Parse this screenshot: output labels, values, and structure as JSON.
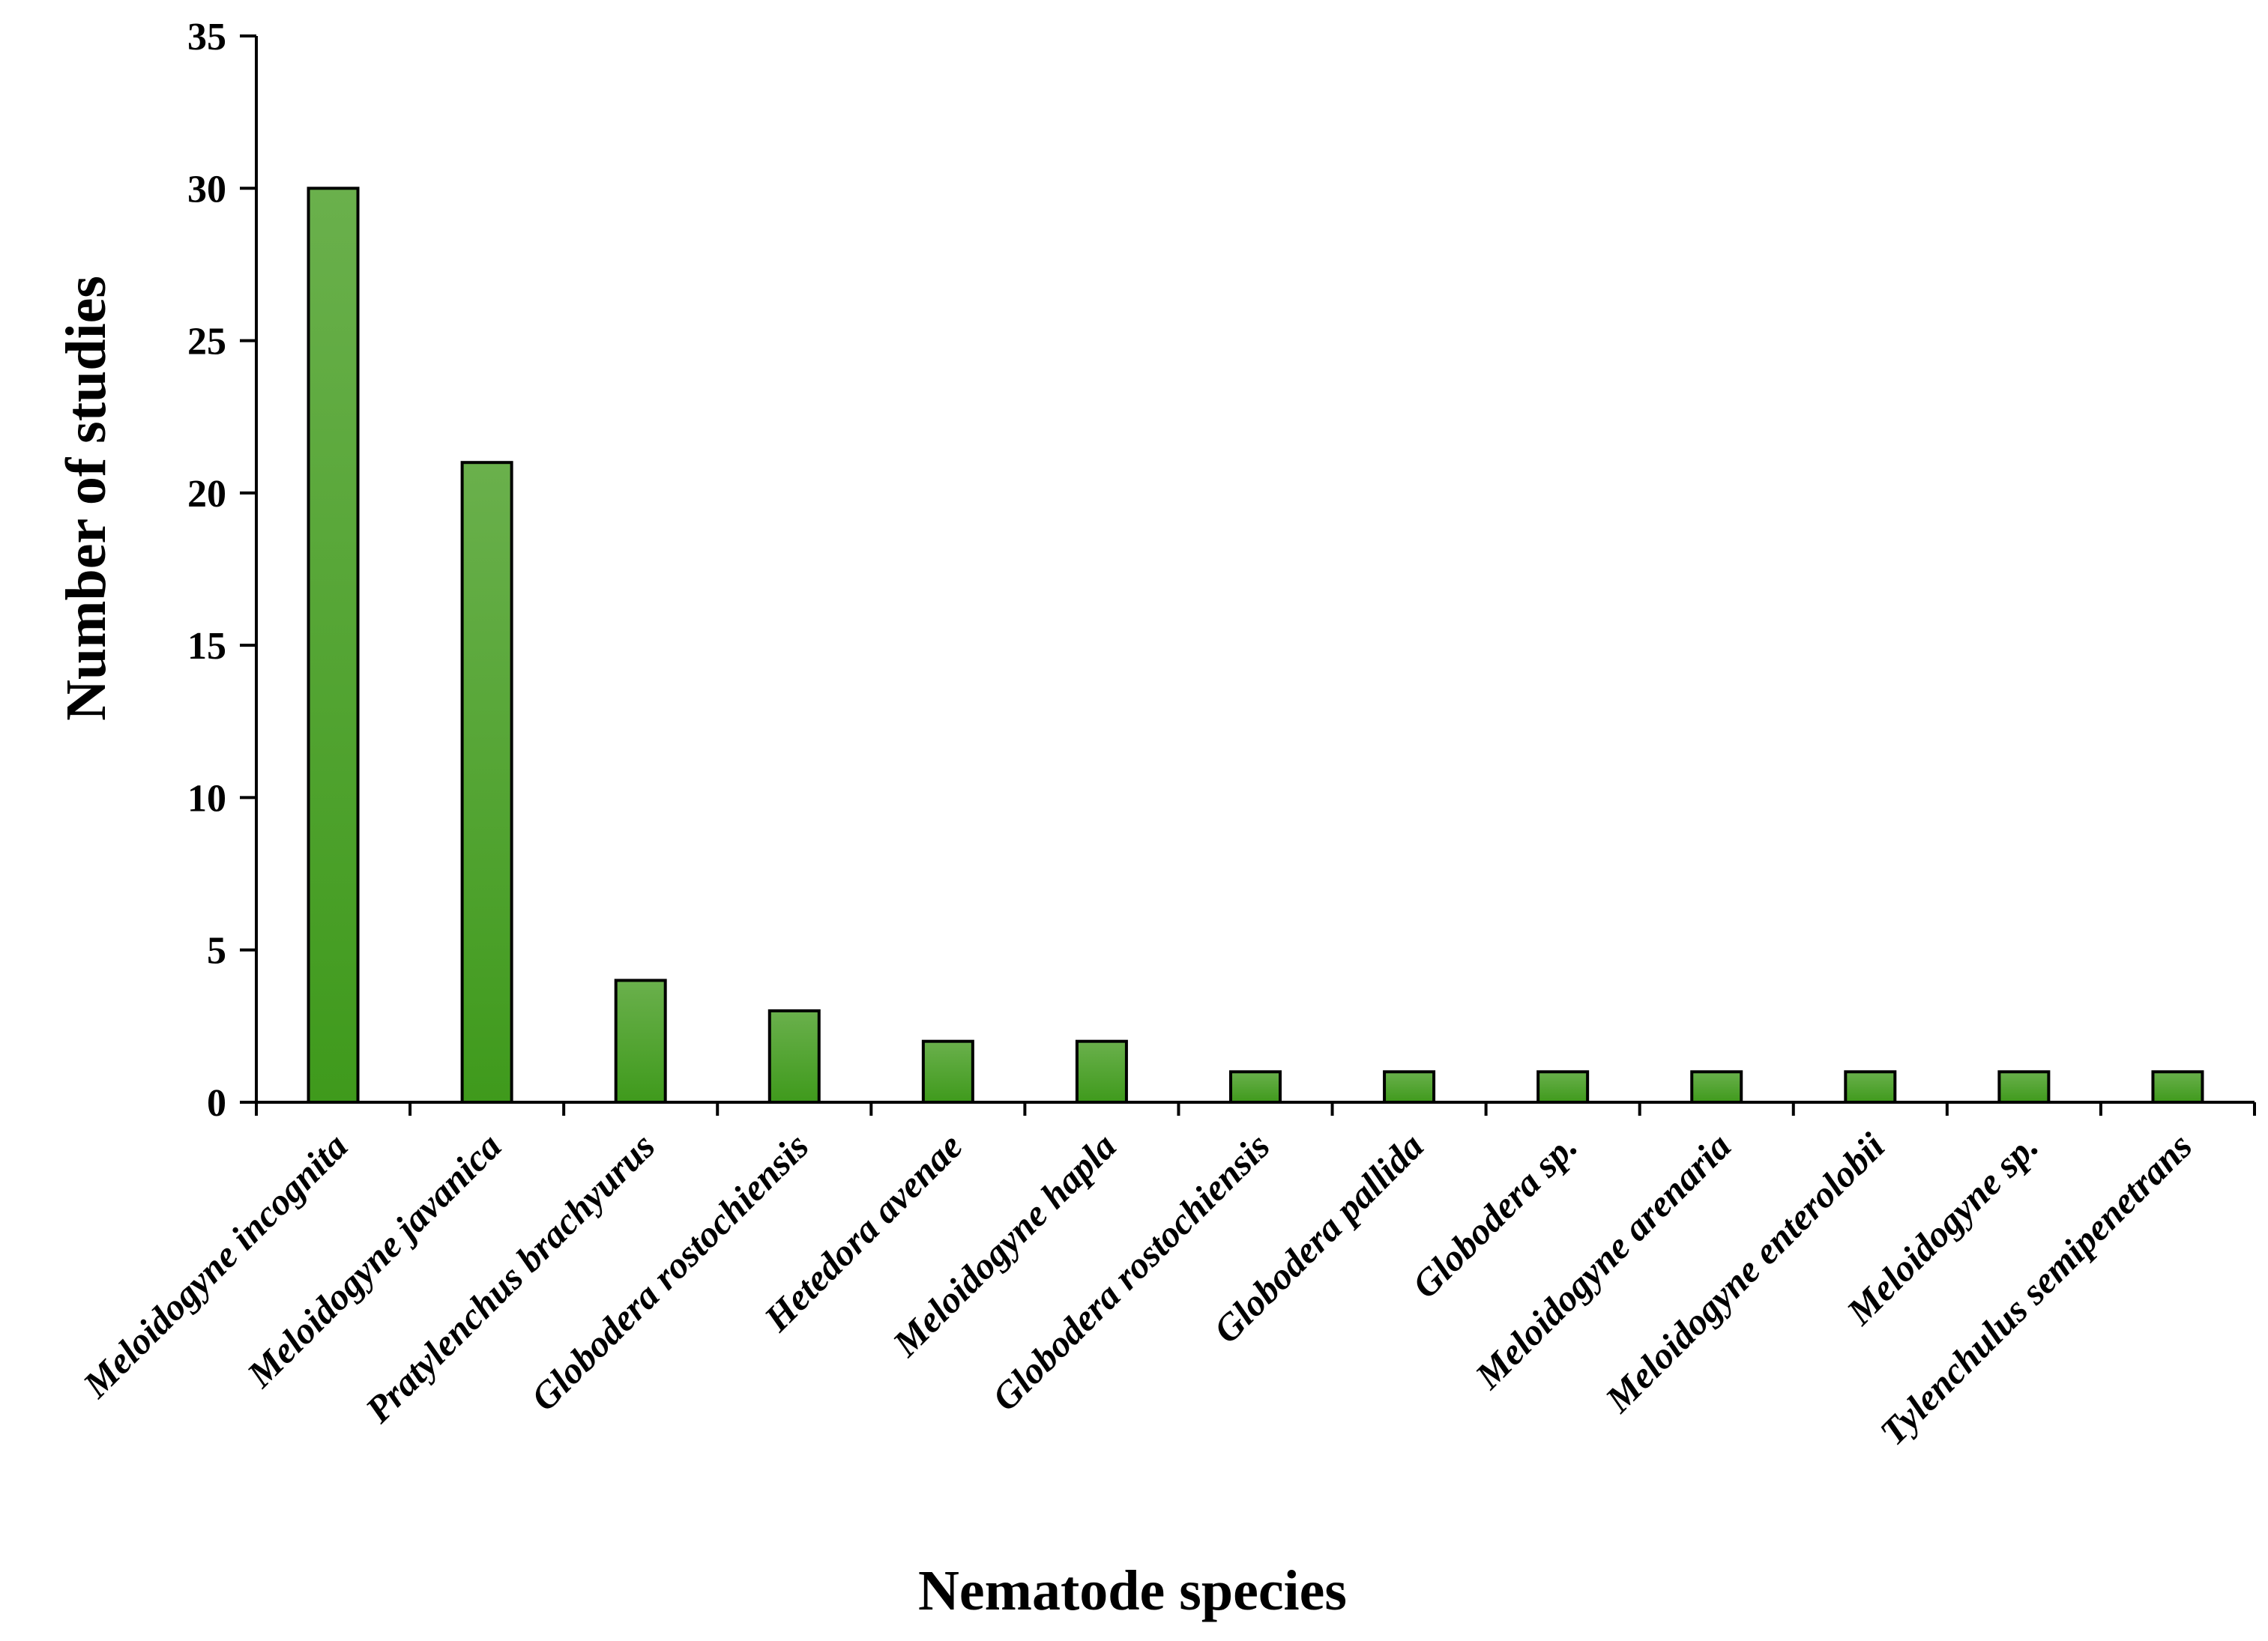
{
  "chart_data": {
    "type": "bar",
    "title": "",
    "xlabel": "Nematode species",
    "ylabel": "Number of studies",
    "ylim": [
      0,
      35
    ],
    "yticks": [
      0,
      5,
      10,
      15,
      20,
      25,
      30,
      35
    ],
    "grid": false,
    "legend": "none",
    "categories": [
      "Meloidogyne incognita",
      "Meloidogyne javanica",
      "Pratylenchus brachyurus",
      "Globodera rostochiensis",
      "Hetedora avenae",
      "Meloidogyne hapla",
      "Globodera  rostochiensis",
      "Globodera pallida",
      "Globodera sp.",
      "Meloidogyne arenaria",
      "Meloidogyne enterolobii",
      "Meloidogyne sp.",
      "Tylenchulus semipenetrans"
    ],
    "values": [
      30,
      21,
      4,
      3,
      2,
      2,
      1,
      1,
      1,
      1,
      1,
      1,
      1
    ],
    "colors": {
      "bar_top": "#6ab04c",
      "bar_bottom": "#3f9a1c",
      "bar_edge": "#000000",
      "axis": "#000000"
    }
  }
}
